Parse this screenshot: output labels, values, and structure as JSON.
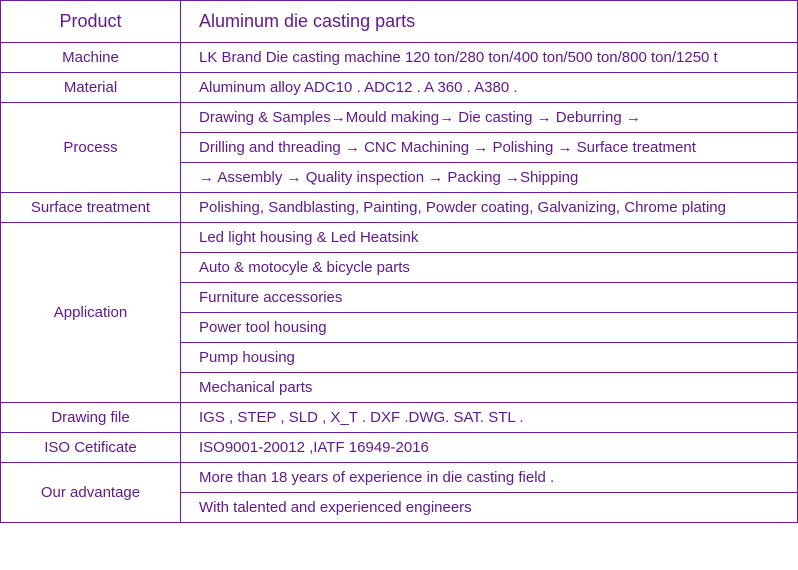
{
  "colors": {
    "border": "#6a1b9a",
    "text": "#5e1a8a",
    "background": "#ffffff"
  },
  "font": {
    "family": "Arial, sans-serif",
    "size_default": 15,
    "size_header": 18
  },
  "table": {
    "label_column_width": 180,
    "rows": [
      {
        "label": "Product",
        "values": [
          "Aluminum die casting parts"
        ],
        "is_header": true
      },
      {
        "label": "Machine",
        "values": [
          "LK Brand Die casting machine 120 ton/280 ton/400 ton/500 ton/800 ton/1250 t"
        ]
      },
      {
        "label": "Material",
        "values": [
          "Aluminum alloy ADC10 . ADC12 . A 360 . A380   ."
        ]
      },
      {
        "label": "Process",
        "values": [
          "Drawing & Samples→Mould making→ Die casting   →   Deburring   →",
          "Drilling and threading →   CNC Machining   → Polishing   →   Surface treatment",
          "→   Assembly   →   Quality inspection   →   Packing →Shipping"
        ]
      },
      {
        "label": "Surface treatment",
        "values": [
          "Polishing, Sandblasting, Painting, Powder coating, Galvanizing, Chrome plating"
        ]
      },
      {
        "label": "Application",
        "values": [
          "Led light housing & Led Heatsink",
          " Auto & motocyle & bicycle   parts",
          " Furniture accessories",
          "Power tool housing",
          " Pump housing",
          "  Mechanical parts"
        ]
      },
      {
        "label": "Drawing file",
        "values": [
          "  IGS , STEP , SLD ,   X_T .   DXF .DWG. SAT. STL ."
        ]
      },
      {
        "label": "ISO Cetificate",
        "values": [
          "  ISO9001-20012 ,IATF 16949-2016"
        ]
      },
      {
        "label": "Our advantage",
        "values": [
          " More than 18 years of experience in die casting field .",
          " With talented and experienced engineers"
        ]
      }
    ]
  }
}
